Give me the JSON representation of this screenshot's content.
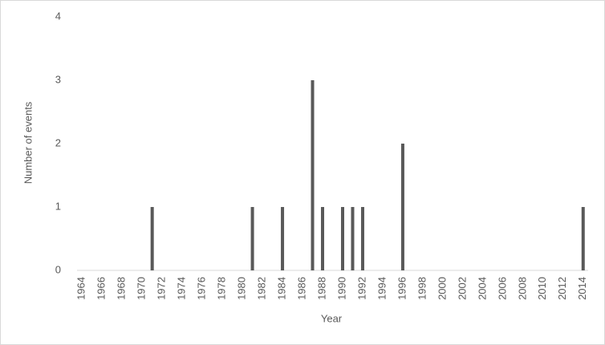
{
  "chart_data": {
    "type": "bar",
    "x_label": "Year",
    "y_label": "Number of events",
    "categories": [
      "1964",
      null,
      "1966",
      null,
      "1968",
      null,
      "1970",
      null,
      "1972",
      null,
      "1974",
      null,
      "1976",
      null,
      "1978",
      null,
      "1980",
      null,
      "1982",
      null,
      "1984",
      null,
      "1986",
      null,
      "1988",
      null,
      "1990",
      null,
      "1992",
      null,
      "1994",
      null,
      "1996",
      null,
      "1998",
      null,
      "2000",
      null,
      "2002",
      null,
      "2004",
      null,
      "2006",
      null,
      "2008",
      null,
      "2010",
      null,
      "2012",
      null,
      "2014"
    ],
    "values": [
      0,
      0,
      0,
      0,
      0,
      0,
      0,
      1,
      0,
      0,
      0,
      0,
      0,
      0,
      0,
      0,
      0,
      1,
      0,
      0,
      1,
      0,
      0,
      3,
      1,
      0,
      1,
      1,
      1,
      0,
      0,
      0,
      2,
      0,
      0,
      0,
      0,
      0,
      0,
      0,
      0,
      0,
      0,
      0,
      0,
      0,
      0,
      0,
      0,
      0,
      1
    ],
    "color": "#595959",
    "ylim": [
      0,
      4
    ],
    "yticks": [
      0,
      1,
      2,
      3,
      4
    ],
    "grid": false
  }
}
